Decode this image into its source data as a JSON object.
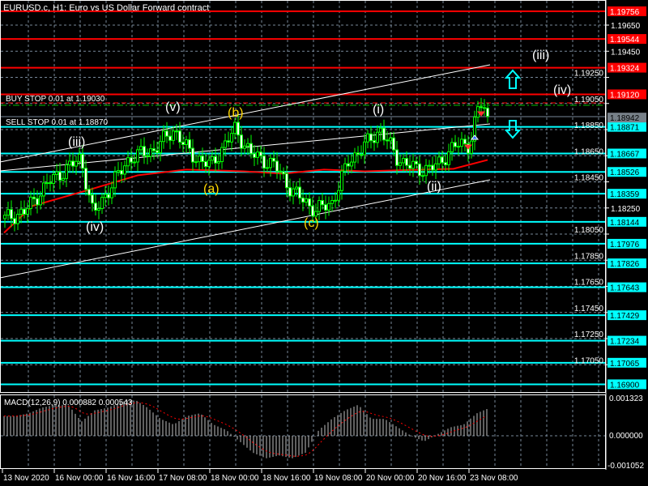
{
  "window": {
    "title": "EURUSD.c, H1:  Euro vs US Dollar Forward contract"
  },
  "orders": {
    "buy_stop": {
      "label": "BUY STOP 0.01 at 1.19030",
      "price": 1.1903
    },
    "sell_stop": {
      "label": "SELL STOP 0.01 at 1.18870",
      "price": 1.1887
    }
  },
  "chart_data": {
    "type": "candlestick",
    "symbol": "EURUSD.c",
    "timeframe": "H1",
    "price_axis_ticks": [
      "1.19650",
      "1.19450",
      "1.19250",
      "1.19050",
      "1.18850",
      "1.18650",
      "1.18450",
      "1.18250",
      "1.18050",
      "1.17850",
      "1.17650",
      "1.17450",
      "1.17250",
      "1.17050"
    ],
    "price_range": [
      1.169,
      1.1982
    ],
    "time_axis_labels": [
      "13 Nov 2020",
      "16 Nov 00:00",
      "16 Nov 16:00",
      "17 Nov 08:00",
      "18 Nov 00:00",
      "18 Nov 16:00",
      "19 Nov 08:00",
      "20 Nov 00:00",
      "20 Nov 16:00",
      "23 Nov 08:00"
    ],
    "current_price": "1.18942",
    "resistance_levels": [
      "1.19756",
      "1.19544",
      "1.19324",
      "1.19120"
    ],
    "support_levels": [
      "1.18871",
      "1.18667",
      "1.18526",
      "1.18359",
      "1.18144",
      "1.17976",
      "1.17826",
      "1.17643",
      "1.17429",
      "1.17234",
      "1.17065",
      "1.16900"
    ],
    "approx_close_path": [
      1.18168,
      1.18218,
      1.18447,
      1.1854,
      1.18633,
      1.18199,
      1.18447,
      1.18633,
      1.18695,
      1.1885,
      1.18664,
      1.18571,
      1.1885,
      1.18664,
      1.18571,
      1.18385,
      1.1823,
      1.18292,
      1.18602,
      1.18726,
      1.1885,
      1.18633,
      1.1854,
      1.18571,
      1.18726,
      1.18737,
      1.19005,
      1.19048,
      1.18924
    ],
    "moving_average_path": [
      1.1806,
      1.18265,
      1.18389,
      1.185,
      1.18544,
      1.18531,
      1.18513,
      1.18544,
      1.18531,
      1.1855,
      1.18618
    ],
    "wave_labels": [
      {
        "text": "(iii)",
        "color": "#ffffff"
      },
      {
        "text": "(iv)",
        "color": "#ffffff"
      },
      {
        "text": "(v)",
        "color": "#ffffff"
      },
      {
        "text": "(a)",
        "color": "#ffd700"
      },
      {
        "text": "(b)",
        "color": "#ffd700"
      },
      {
        "text": "(c)",
        "color": "#ffd700"
      },
      {
        "text": "(i)",
        "color": "#ffffff"
      },
      {
        "text": "(ii)",
        "color": "#ffffff"
      },
      {
        "text": "(iii)",
        "color": "#ffffff"
      },
      {
        "text": "(iv)",
        "color": "#ffffff"
      }
    ],
    "macd": {
      "label": "MACD(12,26,9) 0.000882 0.000543",
      "axis_max": "0.001323",
      "axis_zero": "0.000000",
      "axis_min": "-0.001052",
      "range": [
        -0.001052,
        0.001323
      ],
      "histogram_path": [
        0.0007,
        0.0007,
        0.0008,
        0.001,
        0.0011,
        0.0011,
        0.0005,
        0.0009,
        0.001,
        0.0012,
        0.0013,
        0.001,
        0.0006,
        0.0004,
        0.0007,
        0.0008,
        0.0004,
        0.0002,
        -0.0002,
        -0.0006,
        -0.0008,
        -0.0007,
        -0.0008,
        -0.0006,
        0.0002,
        0.0006,
        0.0009,
        0.0011,
        0.0006,
        0.0006,
        0.0003,
        0.0,
        -0.0002,
        5e-05,
        0.0003,
        0.0004,
        0.0008,
        0.001
      ]
    },
    "colors": {
      "background": "#000000",
      "resistance": "#ff0000",
      "support": "#00ffff",
      "bull": "#00ff00",
      "ma": "#ff0000",
      "macd_hist": "#c0c0c0",
      "macd_signal": "#ff0000",
      "grid": "#778899"
    }
  }
}
